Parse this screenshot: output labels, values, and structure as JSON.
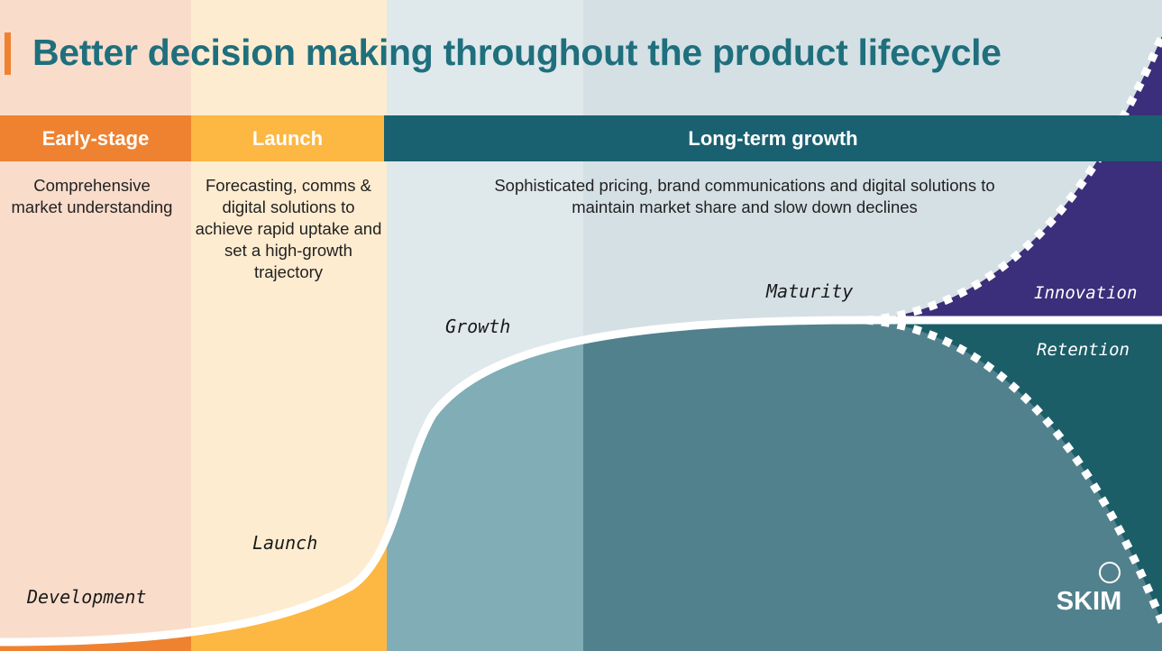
{
  "title": "Better decision making throughout the product lifecycle",
  "phases": {
    "early": {
      "label": "Early-stage",
      "description": "Comprehensive market understanding"
    },
    "launch": {
      "label": "Launch",
      "description": "Forecasting, comms & digital solutions to achieve rapid uptake and set a high-growth trajectory"
    },
    "long_term": {
      "label": "Long-term growth",
      "description": "Sophisticated pricing, brand communications and digital solutions to maintain market share and slow down declines"
    }
  },
  "curve_labels": {
    "development": "Development",
    "launch": "Launch",
    "growth": "Growth",
    "maturity": "Maturity",
    "innovation": "Innovation",
    "retention": "Retention"
  },
  "logo": {
    "text": "SKIM",
    "icon": "ring-icon"
  },
  "colors": {
    "title": "#1f6f7d",
    "early": "#ef8230",
    "launch": "#fdb743",
    "long_term": "#196170",
    "innovation": "#3b2e7a",
    "retention": "#1b5e68"
  }
}
